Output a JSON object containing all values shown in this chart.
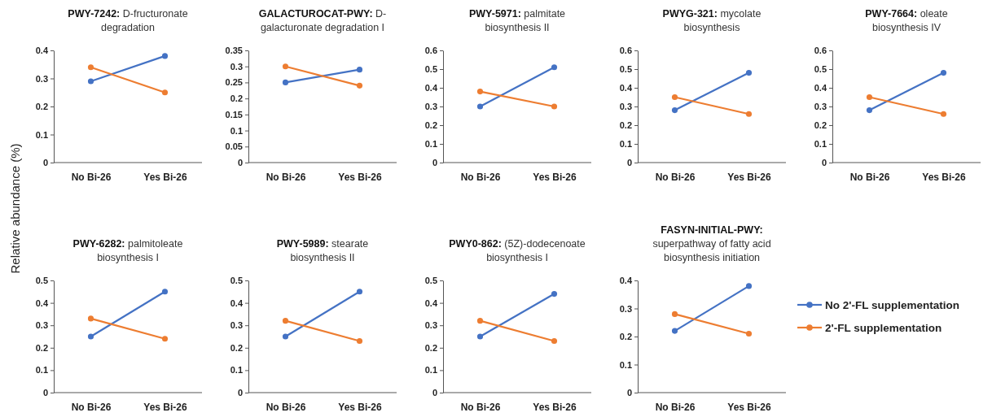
{
  "chart_data": [
    {
      "type": "line",
      "title": "PWY-7242: D-fructuronate degradation",
      "ylabel": "Relative abundance (%)",
      "categories": [
        "No Bi-26",
        "Yes Bi-26"
      ],
      "ylim": [
        0,
        0.4
      ],
      "yticks": [
        0,
        0.1,
        0.2,
        0.3,
        0.4
      ],
      "marker": "circle",
      "series": [
        {
          "color": "#4472c4",
          "values": [
            0.29,
            0.38
          ]
        },
        {
          "color": "#ed7d31",
          "values": [
            0.34,
            0.25
          ]
        }
      ]
    },
    {
      "type": "line",
      "title": "GALACTUROCAT-PWY: D-galacturonate degradation I",
      "categories": [
        "No Bi-26",
        "Yes Bi-26"
      ],
      "ylim": [
        0,
        0.35
      ],
      "yticks": [
        0,
        0.05,
        0.1,
        0.15,
        0.2,
        0.25,
        0.3,
        0.35
      ],
      "marker": "circle",
      "series": [
        {
          "color": "#4472c4",
          "values": [
            0.25,
            0.29
          ]
        },
        {
          "color": "#ed7d31",
          "values": [
            0.3,
            0.24
          ]
        }
      ]
    },
    {
      "type": "line",
      "title": "PWY-5971: palmitate biosynthesis II",
      "categories": [
        "No Bi-26",
        "Yes Bi-26"
      ],
      "ylim": [
        0,
        0.6
      ],
      "yticks": [
        0,
        0.1,
        0.2,
        0.3,
        0.4,
        0.5,
        0.6
      ],
      "marker": "circle",
      "series": [
        {
          "color": "#4472c4",
          "values": [
            0.3,
            0.51
          ]
        },
        {
          "color": "#ed7d31",
          "values": [
            0.38,
            0.3
          ]
        }
      ]
    },
    {
      "type": "line",
      "title": "PWYG-321: mycolate biosynthesis",
      "categories": [
        "No Bi-26",
        "Yes Bi-26"
      ],
      "ylim": [
        0,
        0.6
      ],
      "yticks": [
        0,
        0.1,
        0.2,
        0.3,
        0.4,
        0.5,
        0.6
      ],
      "marker": "circle",
      "series": [
        {
          "color": "#4472c4",
          "values": [
            0.28,
            0.48
          ]
        },
        {
          "color": "#ed7d31",
          "values": [
            0.35,
            0.26
          ]
        }
      ]
    },
    {
      "type": "line",
      "title": "PWY-7664: oleate biosynthesis IV",
      "categories": [
        "No Bi-26",
        "Yes Bi-26"
      ],
      "ylim": [
        0,
        0.6
      ],
      "yticks": [
        0,
        0.1,
        0.2,
        0.3,
        0.4,
        0.5,
        0.6
      ],
      "marker": "circle",
      "series": [
        {
          "color": "#4472c4",
          "values": [
            0.28,
            0.48
          ]
        },
        {
          "color": "#ed7d31",
          "values": [
            0.35,
            0.26
          ]
        }
      ]
    },
    {
      "type": "line",
      "title": "PWY-6282: palmitoleate biosynthesis I",
      "categories": [
        "No Bi-26",
        "Yes Bi-26"
      ],
      "ylim": [
        0,
        0.5
      ],
      "yticks": [
        0,
        0.1,
        0.2,
        0.3,
        0.4,
        0.5
      ],
      "marker": "circle",
      "series": [
        {
          "color": "#4472c4",
          "values": [
            0.25,
            0.45
          ]
        },
        {
          "color": "#ed7d31",
          "values": [
            0.33,
            0.24
          ]
        }
      ]
    },
    {
      "type": "line",
      "title": "PWY-5989: stearate biosynthesis II",
      "categories": [
        "No Bi-26",
        "Yes Bi-26"
      ],
      "ylim": [
        0,
        0.5
      ],
      "yticks": [
        0,
        0.1,
        0.2,
        0.3,
        0.4,
        0.5
      ],
      "marker": "circle",
      "series": [
        {
          "color": "#4472c4",
          "values": [
            0.25,
            0.45
          ]
        },
        {
          "color": "#ed7d31",
          "values": [
            0.32,
            0.23
          ]
        }
      ]
    },
    {
      "type": "line",
      "title": "PWY0-862: (5Z)-dodecenoate biosynthesis I",
      "categories": [
        "No Bi-26",
        "Yes Bi-26"
      ],
      "ylim": [
        0,
        0.5
      ],
      "yticks": [
        0,
        0.1,
        0.2,
        0.3,
        0.4,
        0.5
      ],
      "marker": "circle",
      "series": [
        {
          "color": "#4472c4",
          "values": [
            0.25,
            0.44
          ]
        },
        {
          "color": "#ed7d31",
          "values": [
            0.32,
            0.23
          ]
        }
      ]
    },
    {
      "type": "line",
      "title": "FASYN-INITIAL-PWY: superpathway of fatty acid biosynthesis initiation",
      "categories": [
        "No Bi-26",
        "Yes Bi-26"
      ],
      "ylim": [
        0,
        0.4
      ],
      "yticks": [
        0,
        0.1,
        0.2,
        0.3,
        0.4
      ],
      "marker": "circle",
      "legend": "right",
      "series": [
        {
          "name": "No 2'-FL supplementation",
          "color": "#4472c4",
          "values": [
            0.22,
            0.38
          ]
        },
        {
          "name": "2'-FL supplementation",
          "color": "#ed7d31",
          "values": [
            0.28,
            0.21
          ]
        }
      ]
    }
  ]
}
